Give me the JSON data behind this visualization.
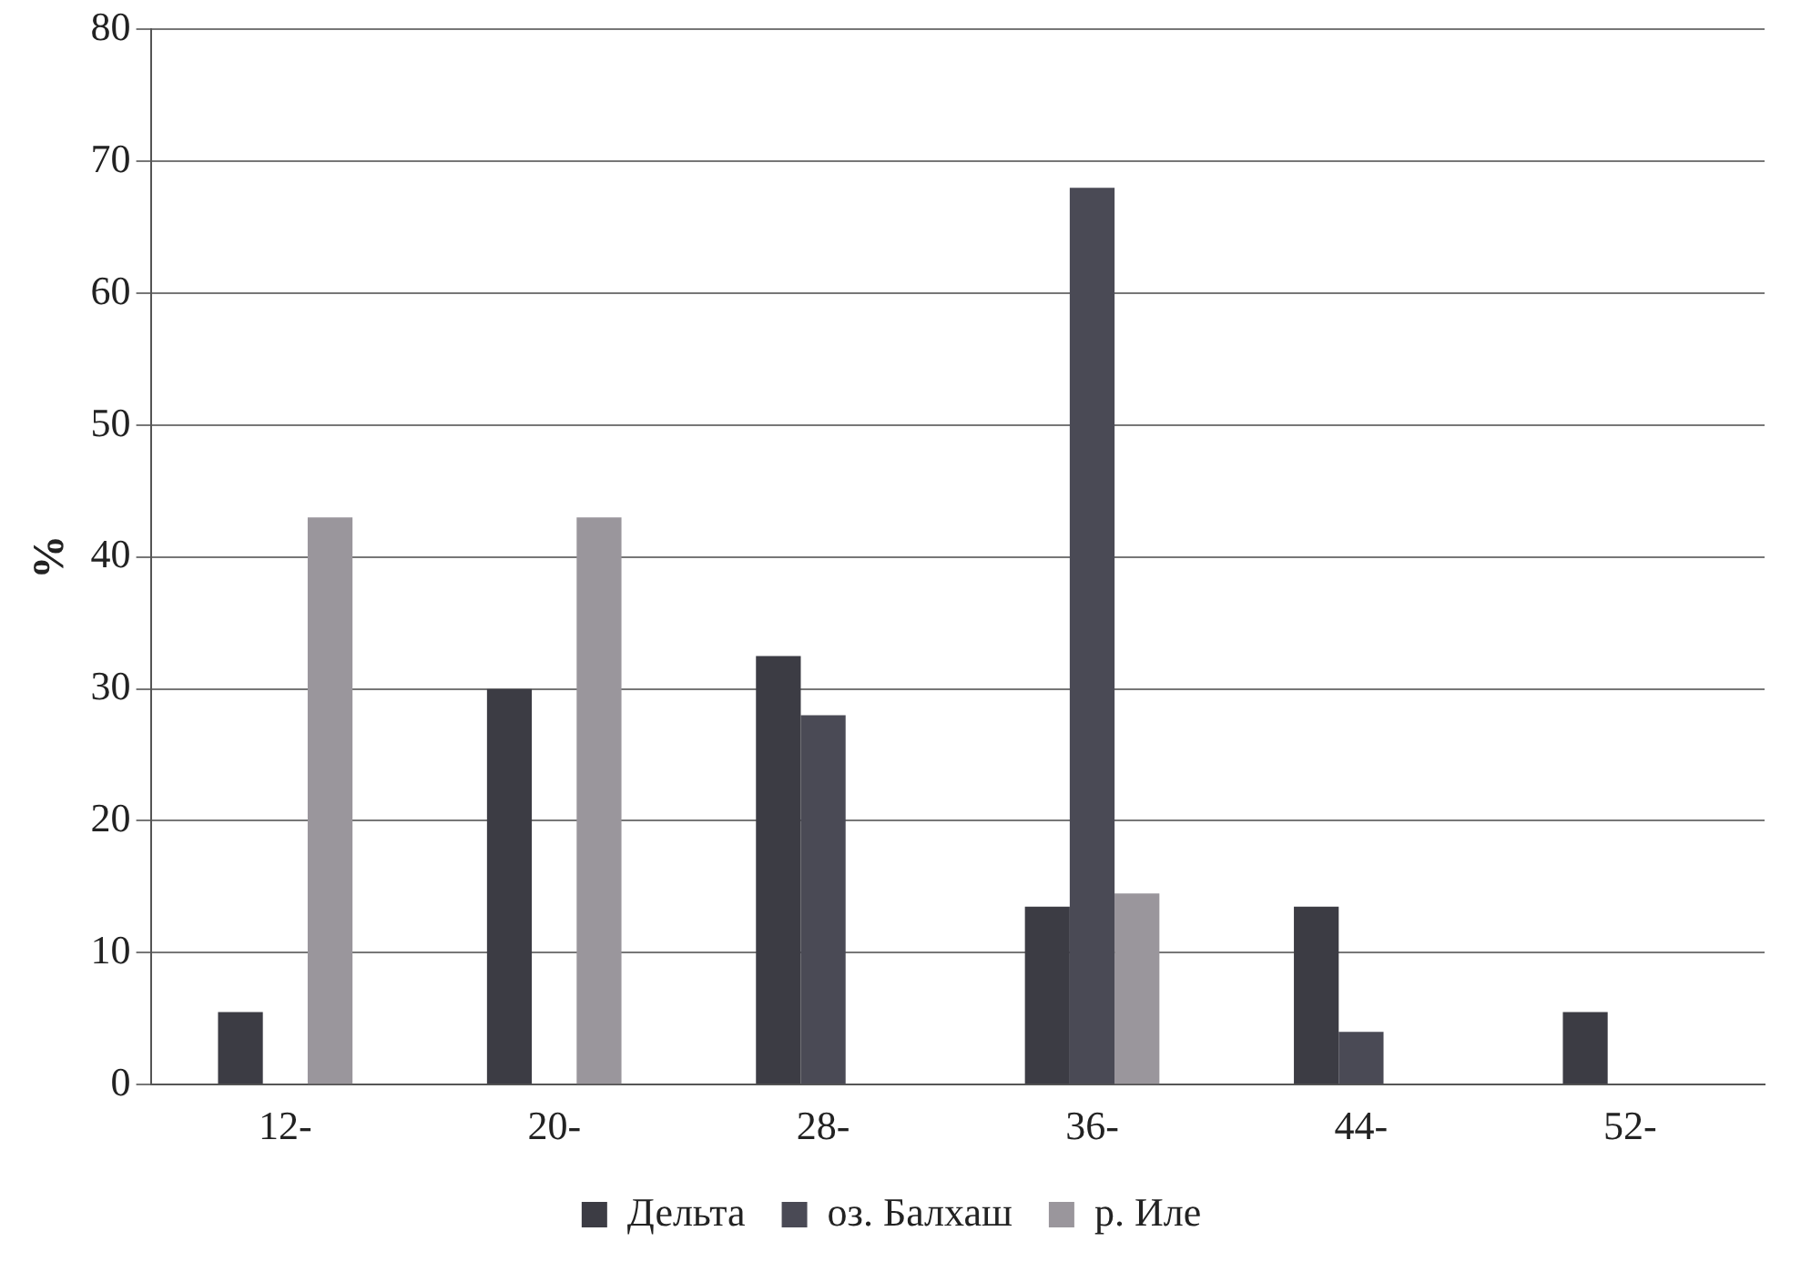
{
  "chart_data": {
    "type": "bar",
    "ylabel": "%",
    "categories": [
      "12-",
      "20-",
      "28-",
      "36-",
      "44-",
      "52-"
    ],
    "series": [
      {
        "name": "Дельта",
        "color": "#3c3c44",
        "values": [
          5.5,
          30,
          32.5,
          13.5,
          13.5,
          5.5
        ]
      },
      {
        "name": "оз. Балхаш",
        "color": "#4a4a55",
        "values": [
          0,
          0,
          28,
          68,
          4,
          0
        ]
      },
      {
        "name": "р. Иле",
        "color": "#9a969c",
        "values": [
          43,
          43,
          0,
          14.5,
          0,
          0
        ]
      }
    ],
    "ylim": [
      0,
      80
    ],
    "yticks": [
      0,
      10,
      20,
      30,
      40,
      50,
      60,
      70,
      80
    ],
    "grid": "y",
    "legend": "bottom"
  }
}
